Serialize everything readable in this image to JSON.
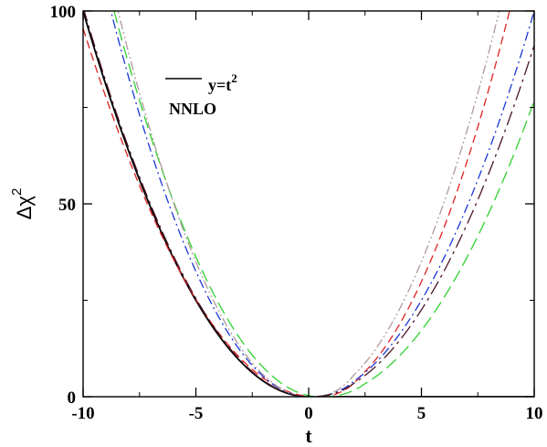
{
  "chart_data": {
    "type": "line",
    "xlabel": "t",
    "ylabel": "Δχ",
    "ylabel_superscript": "2",
    "xlim": [
      -10,
      10
    ],
    "ylim": [
      0,
      100
    ],
    "x_ticks": [
      "-10",
      "-5",
      "0",
      "5",
      "10"
    ],
    "y_ticks": [
      "0",
      "50",
      "100"
    ],
    "legend": {
      "label": "y=t",
      "label_superscript": "2",
      "annotation": "NNLO",
      "placement": "top-left"
    },
    "grid": false,
    "series": [
      {
        "name": "y=t^2",
        "color": "#000000",
        "dash": "solid",
        "coef": [
          1.0,
          0.0,
          0.0
        ],
        "shift": 0.0
      },
      {
        "name": "",
        "color": "#e0201f",
        "dash": "dashed",
        "coef": [
          0.9,
          1.35,
          0.9
        ],
        "shift": 0.3
      },
      {
        "name": "",
        "color": "#2fd12f",
        "dash": "longdashed",
        "coef": [
          1.2,
          0.85,
          0.75
        ],
        "shift": 0.5
      },
      {
        "name": "",
        "color": "#1a36d6",
        "dash": "dashdot",
        "coef": [
          1.3,
          1.0,
          0.9
        ],
        "shift": 0.0
      },
      {
        "name": "",
        "color": "#b09a9a",
        "dash": "dashdotdot",
        "coef": [
          1.4,
          1.4,
          1.0
        ],
        "shift": 0.0
      },
      {
        "name": "",
        "color": "#4a1528",
        "dash": "longdashdot",
        "coef": [
          1.0,
          0.92,
          1.0
        ],
        "shift": 0.05
      }
    ]
  }
}
